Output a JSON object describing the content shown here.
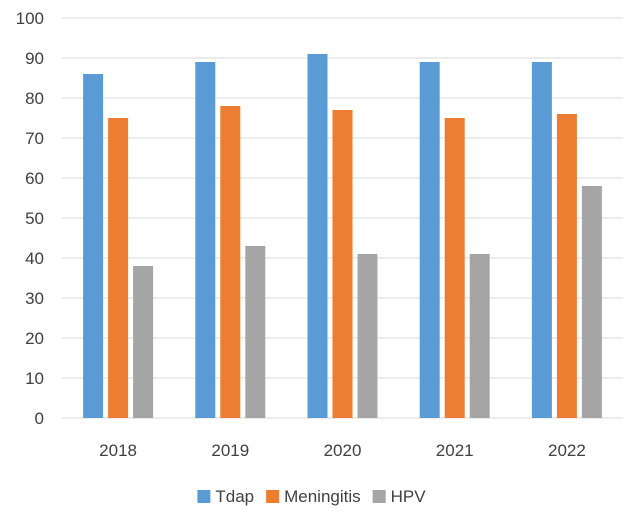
{
  "chart_data": {
    "type": "bar",
    "categories": [
      "2018",
      "2019",
      "2020",
      "2021",
      "2022"
    ],
    "series": [
      {
        "name": "Tdap",
        "color": "#5B9BD5",
        "values": [
          86,
          89,
          91,
          89,
          89
        ]
      },
      {
        "name": "Meningitis",
        "color": "#ED7D31",
        "values": [
          75,
          78,
          77,
          75,
          76
        ]
      },
      {
        "name": "HPV",
        "color": "#A5A5A5",
        "values": [
          38,
          43,
          41,
          41,
          58
        ]
      }
    ],
    "ylim": [
      0,
      100
    ],
    "yticks": [
      "0",
      "10",
      "20",
      "30",
      "40",
      "50",
      "60",
      "70",
      "80",
      "90",
      "100"
    ],
    "grid": true,
    "legend_position": "bottom"
  }
}
